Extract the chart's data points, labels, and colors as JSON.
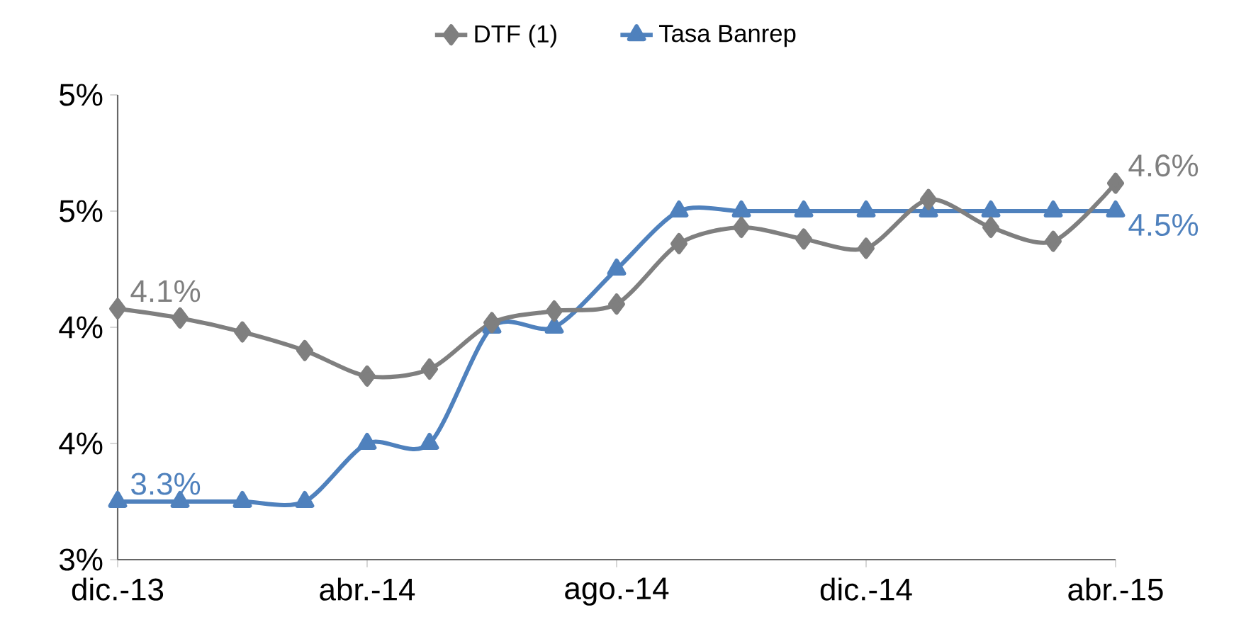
{
  "chart_data": {
    "type": "line",
    "categories": [
      "dic.-13",
      null,
      null,
      null,
      "abr.-14",
      null,
      null,
      null,
      "ago.-14",
      null,
      null,
      null,
      "dic.-14",
      null,
      null,
      null,
      "abr.-15"
    ],
    "series": [
      {
        "name": "DTF (1)",
        "color": "#7f7f7f",
        "marker": "diamond",
        "values": [
          4.08,
          4.04,
          3.98,
          3.9,
          3.79,
          3.82,
          4.02,
          4.07,
          4.1,
          4.36,
          4.43,
          4.38,
          4.34,
          4.55,
          4.43,
          4.37,
          4.62
        ],
        "value_labels": [
          "4.1%",
          null,
          null,
          null,
          null,
          null,
          null,
          null,
          null,
          null,
          null,
          null,
          null,
          null,
          null,
          null,
          "4.6%"
        ]
      },
      {
        "name": "Tasa Banrep",
        "color": "#4f81bd",
        "marker": "triangle",
        "values": [
          3.25,
          3.25,
          3.25,
          3.25,
          3.5,
          3.5,
          4.0,
          4.0,
          4.25,
          4.5,
          4.5,
          4.5,
          4.5,
          4.5,
          4.5,
          4.5,
          4.5
        ],
        "value_labels": [
          "3.3%",
          null,
          null,
          null,
          null,
          null,
          null,
          null,
          null,
          null,
          null,
          null,
          null,
          null,
          null,
          null,
          "4.5%"
        ]
      }
    ],
    "ylim": [
      3,
      5
    ],
    "yticks": [
      {
        "value": 3,
        "label": "3%"
      },
      {
        "value": 3.5,
        "label": "4%"
      },
      {
        "value": 4,
        "label": "4%"
      },
      {
        "value": 4.5,
        "label": "5%"
      },
      {
        "value": 5,
        "label": "5%"
      }
    ],
    "legend": "top",
    "grid": false
  }
}
